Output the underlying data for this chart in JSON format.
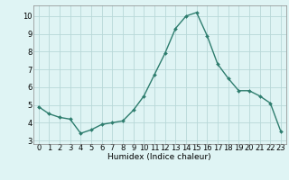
{
  "x": [
    0,
    1,
    2,
    3,
    4,
    5,
    6,
    7,
    8,
    9,
    10,
    11,
    12,
    13,
    14,
    15,
    16,
    17,
    18,
    19,
    20,
    21,
    22,
    23
  ],
  "y": [
    4.9,
    4.5,
    4.3,
    4.2,
    3.4,
    3.6,
    3.9,
    4.0,
    4.1,
    4.7,
    5.5,
    6.7,
    7.9,
    9.3,
    10.0,
    10.2,
    8.9,
    7.3,
    6.5,
    5.8,
    5.8,
    5.5,
    5.1,
    3.5
  ],
  "line_color": "#2e7d6e",
  "marker": "D",
  "marker_size": 2.0,
  "line_width": 1.0,
  "bg_color": "#dff4f4",
  "grid_color": "#b8d8d8",
  "xlabel": "Humidex (Indice chaleur)",
  "xlabel_fontsize": 6.5,
  "tick_fontsize": 6.0,
  "xlim": [
    -0.5,
    23.5
  ],
  "ylim": [
    2.8,
    10.6
  ],
  "yticks": [
    3,
    4,
    5,
    6,
    7,
    8,
    9,
    10
  ],
  "xticks": [
    0,
    1,
    2,
    3,
    4,
    5,
    6,
    7,
    8,
    9,
    10,
    11,
    12,
    13,
    14,
    15,
    16,
    17,
    18,
    19,
    20,
    21,
    22,
    23
  ]
}
